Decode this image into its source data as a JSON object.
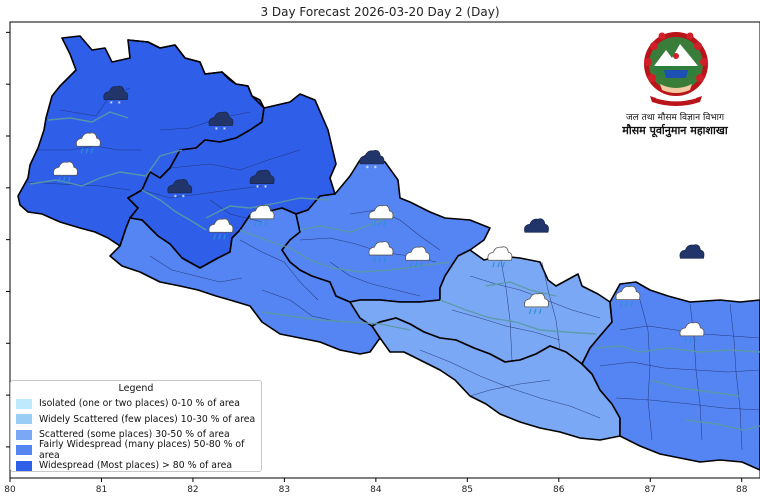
{
  "title": "3 Day Forecast 2026-03-20 Day 2 (Day)",
  "x_axis": {
    "ticks": [
      "80",
      "81",
      "82",
      "83",
      "84",
      "85",
      "86",
      "87",
      "88"
    ],
    "range": [
      80,
      88.2
    ]
  },
  "y_axis": {
    "range": [
      26.2,
      30.6
    ],
    "tick_values": [
      30.5,
      30.0,
      29.5,
      29.0,
      28.5,
      28.0,
      27.5,
      27.0,
      26.5
    ],
    "tick_labels_visible": false
  },
  "header": {
    "dept_name": "जल तथा मौसम विज्ञान विभाग",
    "office_name": "मौसम पूर्वानुमान महाशाखा"
  },
  "legend": {
    "title": "Legend",
    "items": [
      {
        "label": "Isolated (one or two places)  0-10 % of area",
        "color": "#bfeafb"
      },
      {
        "label": "Widely Scattered (few places)  10-30 % of area",
        "color": "#99cdf6"
      },
      {
        "label": "Scattered (some places)  30-50 % of area",
        "color": "#7aa8f4"
      },
      {
        "label": "Fairly Widespread (many places)  50-80 % of area",
        "color": "#5585f3"
      },
      {
        "label": "Widespread (Most places) > 80 % of area",
        "color": "#2f5fe8"
      }
    ]
  },
  "icons": [
    {
      "type": "snow-cloud",
      "lon": 81.15,
      "lat": 29.88
    },
    {
      "type": "snow-cloud",
      "lon": 82.3,
      "lat": 29.63
    },
    {
      "type": "snow-cloud",
      "lon": 81.85,
      "lat": 28.98
    },
    {
      "type": "snow-cloud",
      "lon": 82.75,
      "lat": 29.07
    },
    {
      "type": "snow-cloud",
      "lon": 83.95,
      "lat": 29.26
    },
    {
      "type": "snow-cloud",
      "lon": 85.75,
      "lat": 28.6
    },
    {
      "type": "snow-cloud",
      "lon": 87.45,
      "lat": 28.35
    },
    {
      "type": "sun-rain-cloud",
      "lon": 80.85,
      "lat": 29.43
    },
    {
      "type": "sun-rain-cloud",
      "lon": 80.6,
      "lat": 29.15
    },
    {
      "type": "sun-rain-cloud",
      "lon": 82.75,
      "lat": 28.73
    },
    {
      "type": "sun-rain-cloud",
      "lon": 82.3,
      "lat": 28.6
    },
    {
      "type": "sun-rain-cloud",
      "lon": 84.05,
      "lat": 28.73
    },
    {
      "type": "sun-rain-cloud",
      "lon": 84.05,
      "lat": 28.38
    },
    {
      "type": "sun-rain-cloud",
      "lon": 84.45,
      "lat": 28.33
    },
    {
      "type": "sun-rain-cloud",
      "lon": 85.35,
      "lat": 28.33
    },
    {
      "type": "sun-rain-cloud",
      "lon": 85.75,
      "lat": 27.88
    },
    {
      "type": "sun-rain-cloud",
      "lon": 86.75,
      "lat": 27.95
    },
    {
      "type": "sun-rain-cloud",
      "lon": 87.45,
      "lat": 27.6
    }
  ],
  "regions": [
    {
      "name": "far-west-mountains",
      "coverage": "widespread",
      "color": "#2f5fe8"
    },
    {
      "name": "karnali-mountains",
      "coverage": "widespread",
      "color": "#2f5fe8"
    },
    {
      "name": "western-hills",
      "coverage": "fairly-widespread",
      "color": "#5585f3"
    },
    {
      "name": "gandaki",
      "coverage": "fairly-widespread",
      "color": "#5585f3"
    },
    {
      "name": "bagmati",
      "coverage": "scattered",
      "color": "#7aa8f4"
    },
    {
      "name": "madhesh",
      "coverage": "scattered",
      "color": "#7aa8f4"
    },
    {
      "name": "koshi",
      "coverage": "fairly-widespread",
      "color": "#5585f3"
    }
  ],
  "emblem": {
    "description": "Nepal government emblem"
  }
}
